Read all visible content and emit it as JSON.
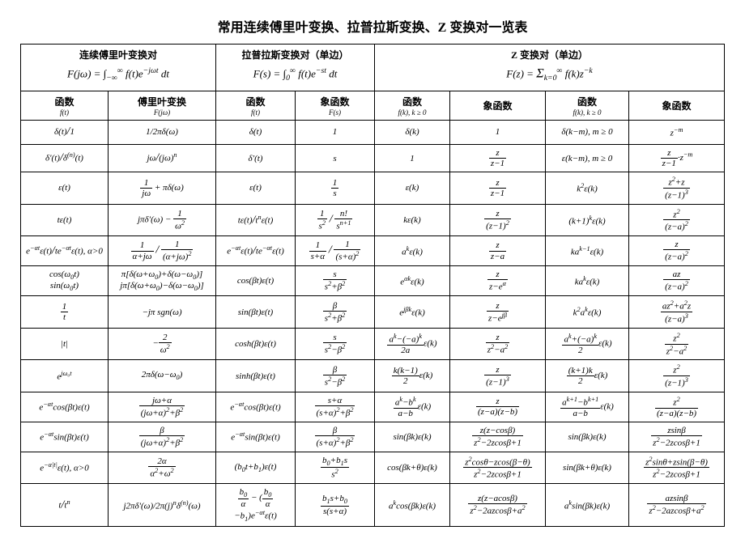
{
  "title": "常用连续傅里叶变换、拉普拉斯变换、Z 变换对一览表",
  "section1_header": "连续傅里叶变换对",
  "section1_formula": "F(jω) = ∫₋∞^∞ f(t)e^{−jωt} dt",
  "section2_header": "拉普拉斯变换对（单边）",
  "section2_formula": "F(s) = ∫₀^∞ f(t)e^{−st} dt",
  "section3_header": "Z 变换对（单边）",
  "section3_formula": "F(z) = Σₖ₌₀^∞ f(k)z^{−k}",
  "col1": "函数",
  "col1sub": "f(t)",
  "col2": "傅里叶变换",
  "col2sub": "F(jω)",
  "col3": "函数",
  "col3sub": "f(t)",
  "col4": "象函数",
  "col4sub": "F(s)",
  "col5": "函数",
  "col5sub": "f(k), k ≥ 0",
  "col6": "象函数",
  "col7": "函数",
  "col7sub": "f(k), k ≥ 0",
  "col8": "象函数",
  "rows": [
    [
      "δ(t)/1",
      "1/2πδ(ω)",
      "δ(t)",
      "1",
      "δ(k)",
      "1",
      "δ(k−m), m ≥ 0",
      "z^{−m}"
    ],
    [
      "δ′(t)/δ^{(n)}(t)",
      "jω/(jω)^n",
      "δ′(t)",
      "s",
      "1",
      "z/(z−1)",
      "ε(k−m), m ≥ 0",
      "(z/(z−1))·z^{−m}"
    ],
    [
      "ε(t)",
      "1/(jω) + πδ(ω)",
      "ε(t)",
      "1/s",
      "ε(k)",
      "z/(z−1)",
      "k²ε(k)",
      "(z²+z)/(z−1)³"
    ],
    [
      "tε(t)",
      "jπδ′(ω) − 1/ω²",
      "tε(t)/t^n ε(t)",
      "1/s² / n!/s^{n+1}",
      "kε(k)",
      "z/(z−1)²",
      "(k+1)^k ε(k)",
      "z²/(z−a)²"
    ],
    [
      "e^{−αt}ε(t)/te^{−αt}ε(t), α>0",
      "1/(α+jω) / 1/(α+jω)²",
      "e^{−αt}ε(t)/te^{−αt}ε(t)",
      "1/(s+α) / 1/(s+α)²",
      "a^k ε(k)",
      "z/(z−a)",
      "ka^{k−1}ε(k)",
      "z/(z−a)²"
    ],
    [
      "cos(ω₀t) / sin(ω₀t)",
      "π[δ(ω+ω₀)+δ(ω−ω₀)] / jπ[δ(ω+ω₀)−δ(ω−ω₀)]",
      "cos(βt)ε(t)",
      "s/(s²+β²)",
      "e^{αk}ε(k)",
      "z/(z−e^α)",
      "ka^k ε(k)",
      "az/(z−a)²"
    ],
    [
      "1/t",
      "−jπ sgn(ω)",
      "sin(βt)ε(t)",
      "β/(s²+β²)",
      "e^{jβk}ε(k)",
      "z/(z−e^{jβ})",
      "k²a^k ε(k)",
      "(a z²+a²z)/(z−a)³"
    ],
    [
      "|t|",
      "−2/ω²",
      "cosh(βt)ε(t)",
      "s/(s²−β²)",
      "(a^k−(−a)^k)/(2a) ε(k)",
      "z/(z²−a²)",
      "(a^k+(−a)^k)/2 ε(k)",
      "z²/(z²−a²)"
    ],
    [
      "e^{jω₀t}",
      "2πδ(ω−ω₀)",
      "sinh(βt)ε(t)",
      "β/(s²−β²)",
      "k(k−1)/2 ε(k)",
      "z/(z−1)³",
      "(k+1)k/2 ε(k)",
      "z²/(z−1)³"
    ],
    [
      "e^{−αt}cos(βt)ε(t)",
      "(jω+α)/((jω+α)²+β²)",
      "e^{−αt}cos(βt)ε(t)",
      "(s+α)/((s+α)²+β²)",
      "(a^k−b^k)/(a−b) ε(k)",
      "z/((z−a)(z−b))",
      "(a^{k+1}−b^{k+1})/(a−b) ε(k)",
      "z²/((z−a)(z−b))"
    ],
    [
      "e^{−αt}sin(βt)ε(t)",
      "β/((jω+α)²+β²)",
      "e^{−αt}sin(βt)ε(t)",
      "β/((s+α)²+β²)",
      "sin(βk)ε(k)",
      "z(z−cosβ)/(z²−2zcosβ+1)",
      "sin(βk)ε(k)",
      "zsinβ/(z²−2zcosβ+1)"
    ],
    [
      "e^{−α|t|}ε(t), α>0",
      "2α/(α²+ω²)",
      "(b₀t+b₁)ε(t)",
      "(b₀+b₁s)/s²",
      "cos(βk+θ)ε(k)",
      "(z²cosθ−zcos(β−θ))/(z²−2zcosβ+1)",
      "sin(βk+θ)ε(k)",
      "(z²sinθ+zsin(β−θ))/(z²−2zcosβ+1)"
    ],
    [
      "t/t^n",
      "j2πδ′(ω)/2π(j)^n δ^{(n)}(ω)",
      "b₀/α − (b₀/α − b₁)e^{−αt}ε(t)",
      "(b₁s+b₀)/(s(s+α))",
      "a^k cos(βk)ε(k)",
      "z(z−acosβ)/(z²−2azcosβ+a²)",
      "a^k sin(βk)ε(k)",
      "azsinβ/(z²−2azcosβ+a²)"
    ]
  ]
}
